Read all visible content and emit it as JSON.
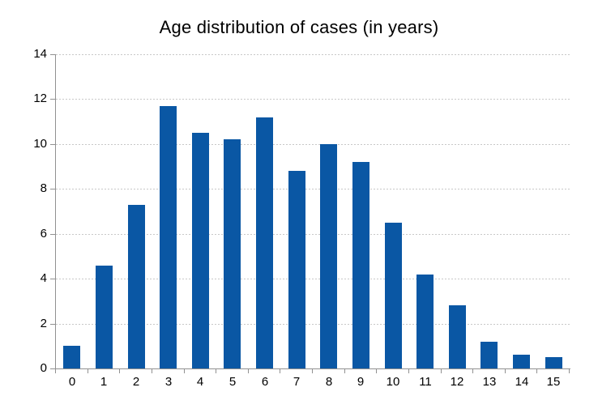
{
  "chart_data": {
    "type": "bar",
    "title": "Age distribution of cases (in years)",
    "categories": [
      "0",
      "1",
      "2",
      "3",
      "4",
      "5",
      "6",
      "7",
      "8",
      "9",
      "10",
      "11",
      "12",
      "13",
      "14",
      "15"
    ],
    "values": [
      1.0,
      4.6,
      7.3,
      11.7,
      10.5,
      10.2,
      11.2,
      8.8,
      10.0,
      9.2,
      6.5,
      4.2,
      2.8,
      1.2,
      0.6,
      0.5
    ],
    "xlabel": "",
    "ylabel": "",
    "ylim": [
      0,
      14
    ],
    "yticks": [
      0,
      2,
      4,
      6,
      8,
      10,
      12,
      14
    ],
    "grid": true,
    "legend_position": "none",
    "colors": {
      "bar": "#0A57A4",
      "gridline": "#C8C8C8",
      "axis": "#919191",
      "text": "#000000",
      "background": "#FFFFFF"
    }
  }
}
